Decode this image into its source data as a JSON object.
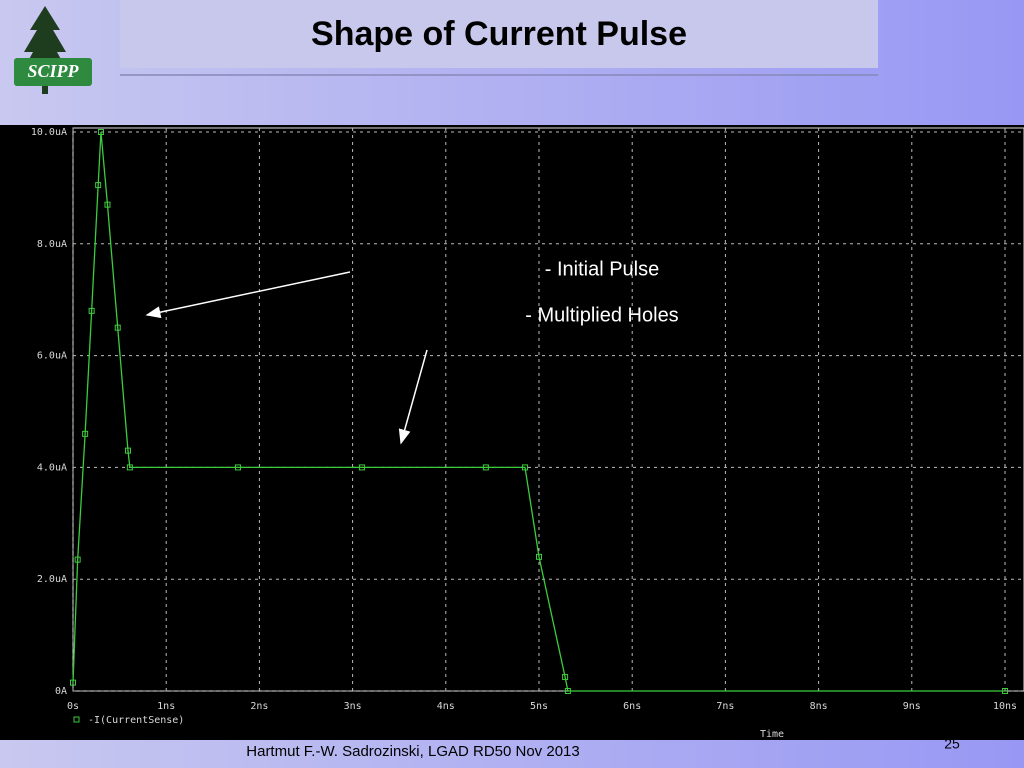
{
  "slide": {
    "title": "Shape of Current Pulse",
    "logo_text": "SCIPP",
    "footer": "Hartmut F.-W. Sadrozinski, LGAD RD50 Nov 2013",
    "page_number": "25"
  },
  "chart_data": {
    "type": "line",
    "xlabel": "Time",
    "xlim": [
      0,
      10
    ],
    "ylim": [
      0,
      10
    ],
    "xticks": [
      {
        "value": 0,
        "label": "0s"
      },
      {
        "value": 1,
        "label": "1ns"
      },
      {
        "value": 2,
        "label": "2ns"
      },
      {
        "value": 3,
        "label": "3ns"
      },
      {
        "value": 4,
        "label": "4ns"
      },
      {
        "value": 5,
        "label": "5ns"
      },
      {
        "value": 6,
        "label": "6ns"
      },
      {
        "value": 7,
        "label": "7ns"
      },
      {
        "value": 8,
        "label": "8ns"
      },
      {
        "value": 9,
        "label": "9ns"
      },
      {
        "value": 10,
        "label": "10ns"
      }
    ],
    "yticks": [
      {
        "value": 0,
        "label": "0A"
      },
      {
        "value": 2,
        "label": "2.0uA"
      },
      {
        "value": 4,
        "label": "4.0uA"
      },
      {
        "value": 6,
        "label": "6.0uA"
      },
      {
        "value": 8,
        "label": "8.0uA"
      },
      {
        "value": 10,
        "label": "10.0uA"
      }
    ],
    "grid": true,
    "series": [
      {
        "name": "-I(CurrentSense)",
        "color": "#3ccc3c",
        "x": [
          0,
          0.05,
          0.13,
          0.2,
          0.27,
          0.3,
          0.37,
          0.48,
          0.59,
          0.61,
          1.77,
          3.1,
          4.43,
          4.85,
          5.0,
          5.28,
          5.31,
          10
        ],
        "values": [
          0.15,
          2.35,
          4.6,
          6.8,
          9.05,
          10.0,
          8.7,
          6.5,
          4.3,
          4.0,
          4.0,
          4.0,
          4.0,
          4.0,
          2.4,
          0.25,
          0,
          0
        ]
      }
    ],
    "annotations": [
      "- Initial Pulse",
      "- Multiplied Holes"
    ]
  }
}
